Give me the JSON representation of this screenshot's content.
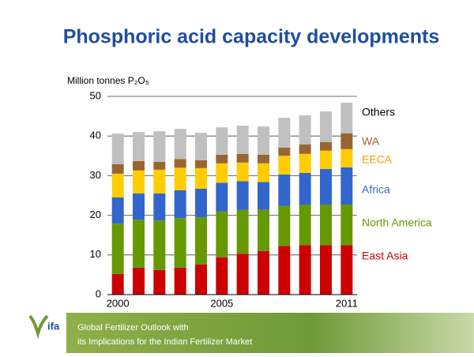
{
  "chart_data": {
    "type": "stacked_bar",
    "title": "Phosphoric acid capacity developments",
    "y_label": "Million tonnes P₂O₅",
    "categories": [
      "2000",
      null,
      null,
      null,
      null,
      "2005",
      null,
      null,
      null,
      null,
      null,
      "2011"
    ],
    "ylim": [
      0,
      50
    ],
    "yticks": [
      0,
      10,
      20,
      30,
      40,
      50
    ],
    "grid": true,
    "series": [
      {
        "name": "East Asia",
        "color": "#cc0000",
        "label_color": "#cc0000",
        "values": [
          5.2,
          6.8,
          6.2,
          6.8,
          7.6,
          9.4,
          10.3,
          11.0,
          12.3,
          12.5,
          12.5,
          12.5
        ]
      },
      {
        "name": "North America",
        "color": "#669900",
        "label_color": "#669900",
        "values": [
          12.7,
          12.1,
          12.5,
          12.5,
          11.9,
          11.6,
          11.1,
          10.4,
          10.1,
          10.2,
          10.2,
          10.2
        ]
      },
      {
        "name": "Africa",
        "color": "#3366cc",
        "label_color": "#3366cc",
        "values": [
          6.6,
          6.6,
          6.8,
          7.0,
          7.2,
          7.2,
          7.2,
          7.0,
          7.9,
          8.0,
          9.0,
          9.4
        ]
      },
      {
        "name": "EECA",
        "color": "#ffcc00",
        "label_color": "#ff9900",
        "values": [
          6.0,
          5.8,
          6.0,
          5.7,
          5.2,
          4.9,
          4.7,
          4.7,
          4.7,
          4.8,
          4.6,
          4.6
        ]
      },
      {
        "name": "WA",
        "color": "#996633",
        "label_color": "#996633",
        "values": [
          2.4,
          2.4,
          2.0,
          2.2,
          2.0,
          2.2,
          2.2,
          2.2,
          2.1,
          2.4,
          2.2,
          4.0
        ]
      },
      {
        "name": "Others",
        "color": "#c0c0c0",
        "label_color": "#000000",
        "values": [
          7.7,
          7.3,
          7.7,
          7.6,
          6.9,
          6.9,
          7.1,
          7.1,
          7.5,
          7.3,
          7.7,
          7.7
        ]
      }
    ]
  },
  "footer": {
    "logo": "ifa",
    "lines": [
      "Global Fertilizer Outlook with",
      "its Implications for the Indian Fertilizer Market"
    ]
  }
}
